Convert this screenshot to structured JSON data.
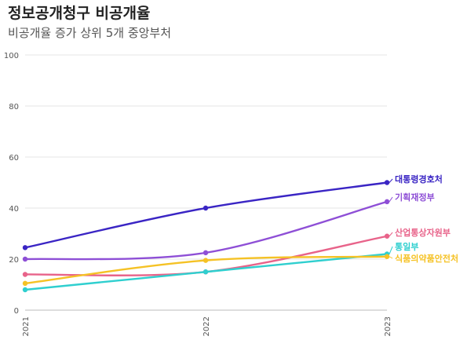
{
  "header": {
    "title": "정보공개청구 비공개율",
    "subtitle": "비공개율 증가 상위 5개 중앙부처"
  },
  "chart_data": {
    "type": "line",
    "x": [
      "2021",
      "2022",
      "2023"
    ],
    "ylim": [
      0,
      100
    ],
    "y_ticks": [
      0,
      20,
      40,
      60,
      80,
      100
    ],
    "grid": true,
    "series": [
      {
        "name": "대통령경호처",
        "color": "#3a25c4",
        "values": [
          24.5,
          40,
          50
        ]
      },
      {
        "name": "기획재정부",
        "color": "#8e4fd6",
        "values": [
          20,
          22.5,
          42.5
        ]
      },
      {
        "name": "산업통상자원부",
        "color": "#e8638a",
        "values": [
          14,
          15,
          29
        ]
      },
      {
        "name": "통일부",
        "color": "#2fcfcf",
        "values": [
          8,
          15,
          22
        ]
      },
      {
        "name": "식품의약품안전처",
        "color": "#f5c225",
        "values": [
          10.5,
          19.5,
          21
        ]
      }
    ]
  }
}
